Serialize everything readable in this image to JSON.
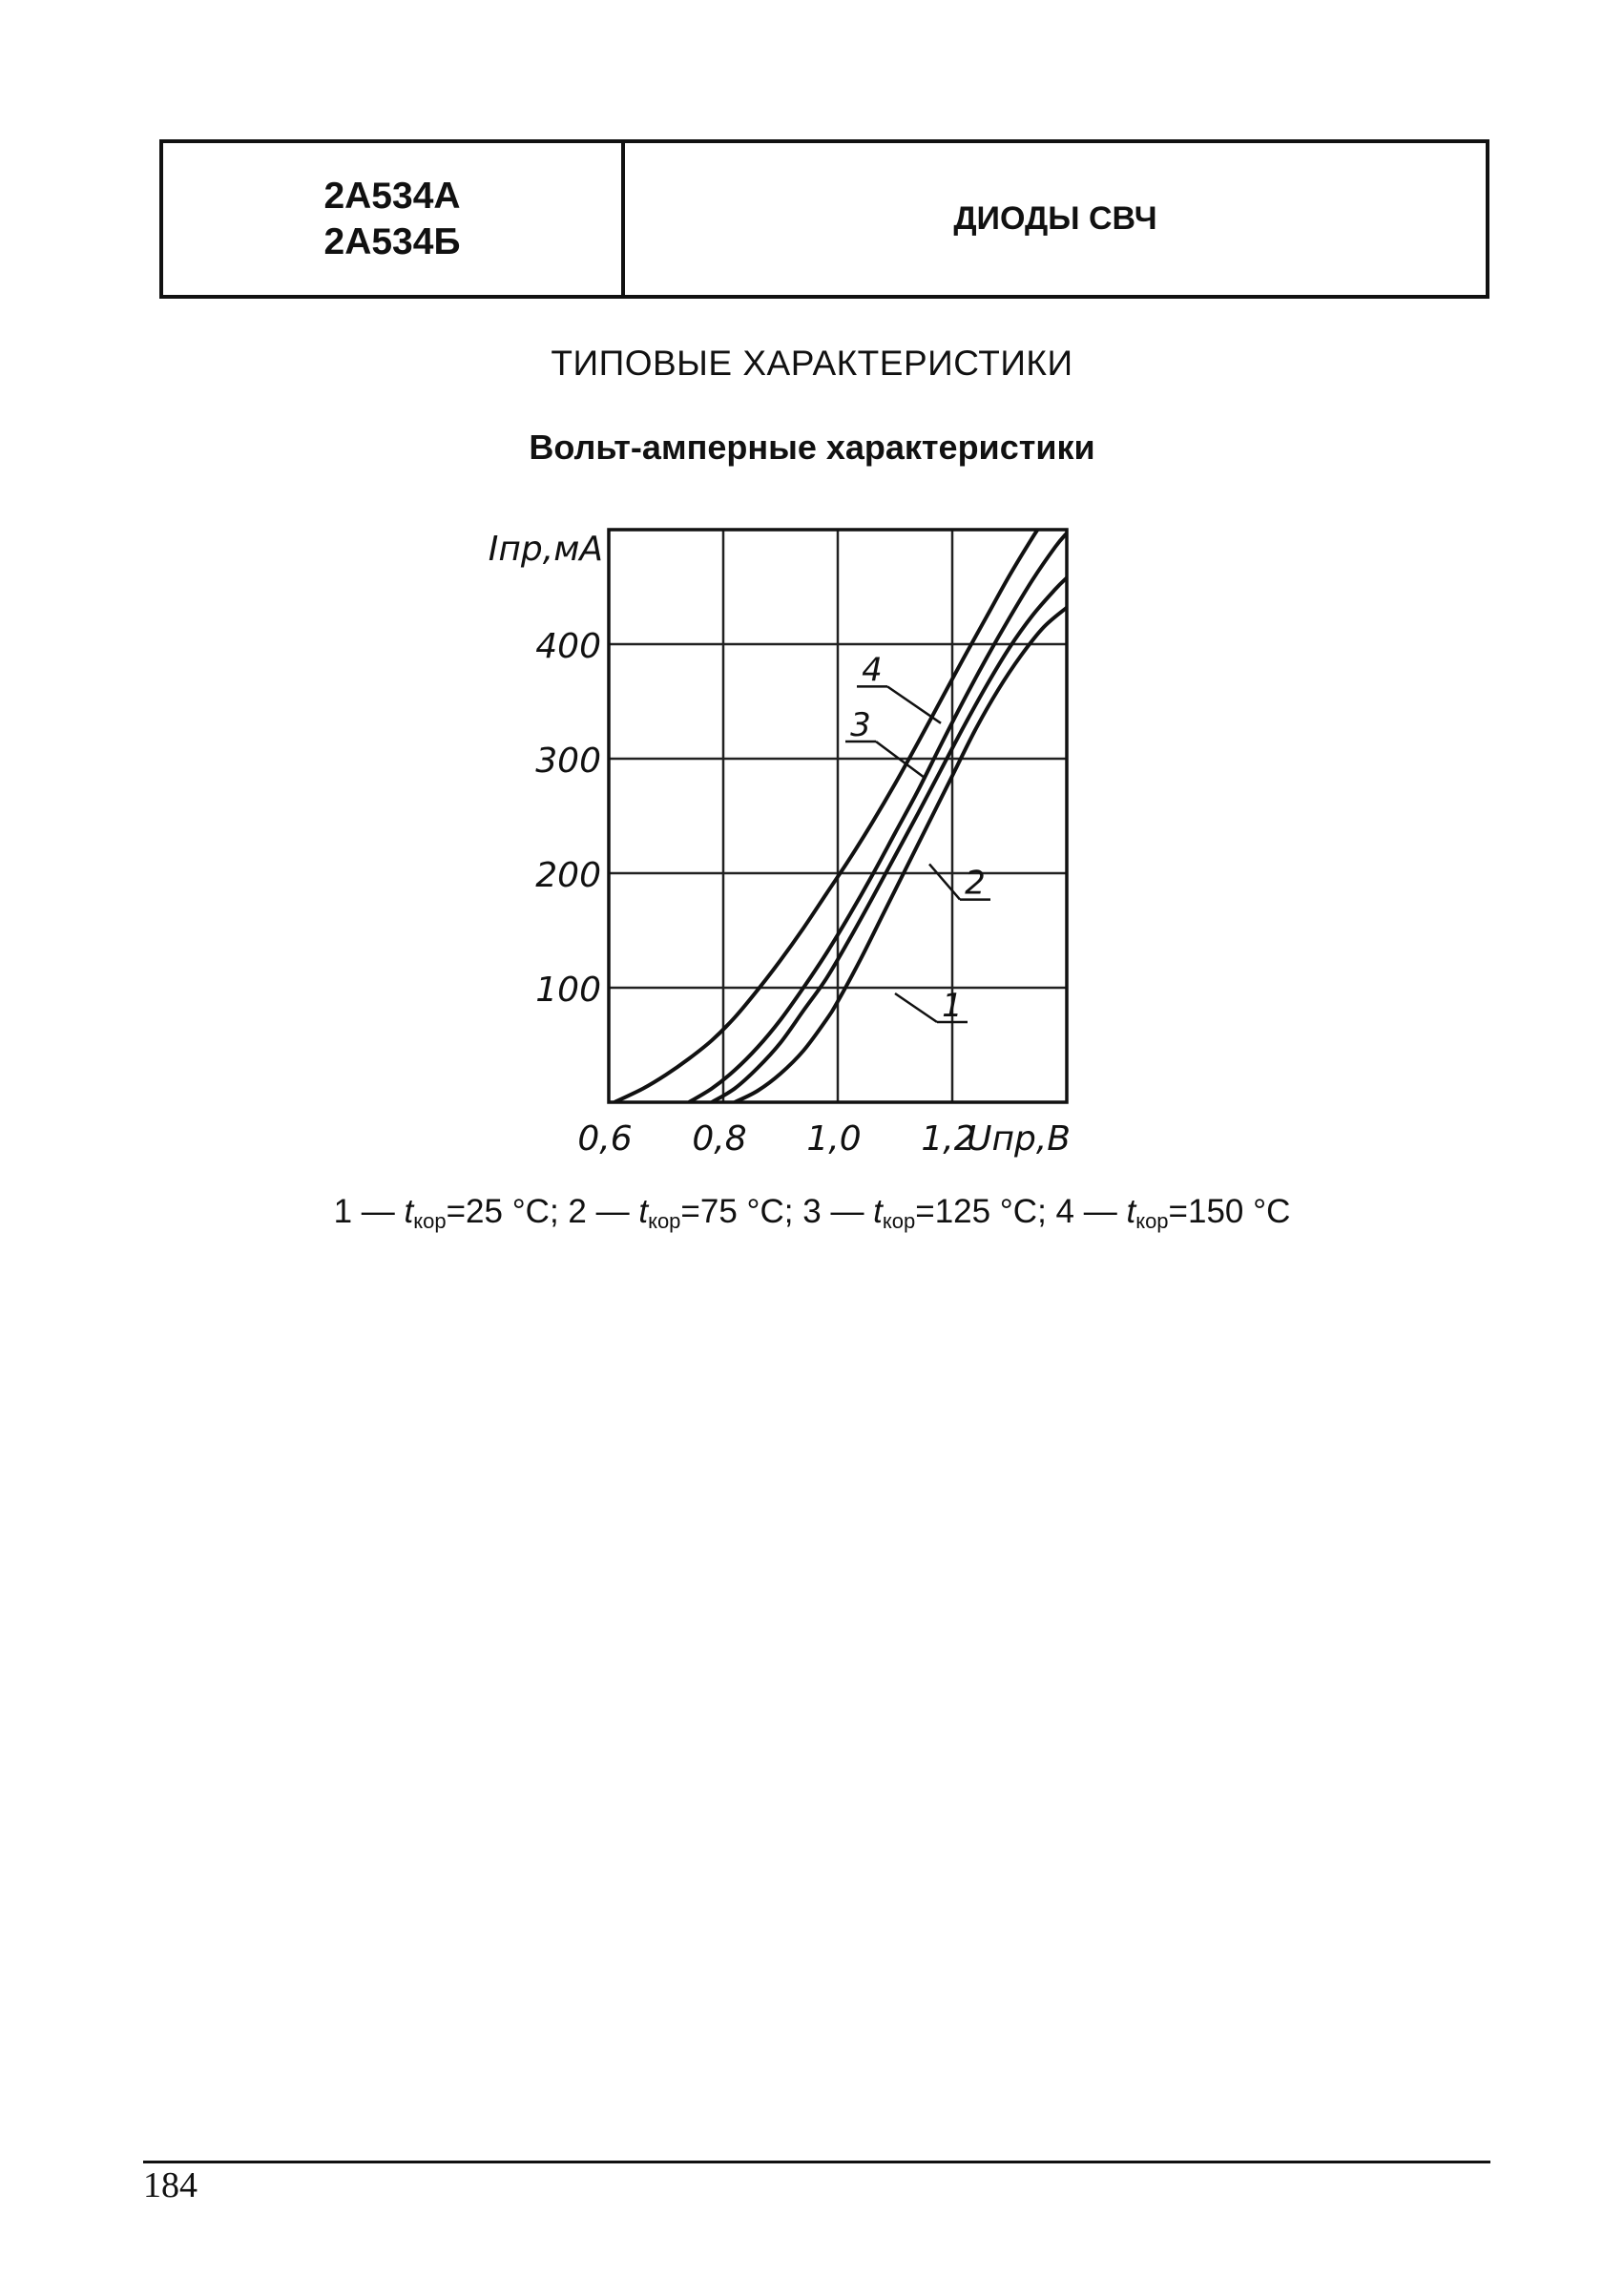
{
  "header": {
    "part_numbers": [
      "2А534А",
      "2А534Б"
    ],
    "category": "ДИОДЫ СВЧ"
  },
  "section_title": "ТИПОВЫЕ ХАРАКТЕРИСТИКИ",
  "page_number": "184",
  "legend": [
    {
      "id": "1",
      "temp": "25"
    },
    {
      "id": "2",
      "temp": "75"
    },
    {
      "id": "3",
      "temp": "125"
    },
    {
      "id": "4",
      "temp": "150"
    }
  ],
  "legend_text": {
    "dash": "—",
    "t_symbol": "t",
    "t_sub": "кор",
    "unit": "°C",
    "separator": ";"
  },
  "chart_data": {
    "type": "line",
    "title": "Вольт-амперные характеристики",
    "xlabel": "Uпр,В",
    "ylabel": "Iпр,мА",
    "xlim": [
      0.6,
      1.4
    ],
    "ylim": [
      0,
      500
    ],
    "x_ticks": [
      0.6,
      0.8,
      1.0,
      1.2
    ],
    "x_tick_labels": [
      "0,6",
      "0,8",
      "1,0",
      "1,2"
    ],
    "y_ticks": [
      100,
      200,
      300,
      400
    ],
    "y_tick_labels": [
      "100",
      "200",
      "300",
      "400"
    ],
    "grid": true,
    "series": [
      {
        "name": "1",
        "points": [
          [
            0.82,
            0
          ],
          [
            0.86,
            10
          ],
          [
            0.9,
            25
          ],
          [
            0.94,
            45
          ],
          [
            0.98,
            72
          ],
          [
            1.0,
            88
          ],
          [
            1.04,
            125
          ],
          [
            1.08,
            165
          ],
          [
            1.12,
            205
          ],
          [
            1.16,
            245
          ],
          [
            1.2,
            285
          ],
          [
            1.24,
            325
          ],
          [
            1.28,
            360
          ],
          [
            1.32,
            390
          ],
          [
            1.36,
            415
          ],
          [
            1.4,
            432
          ]
        ]
      },
      {
        "name": "2",
        "points": [
          [
            0.78,
            0
          ],
          [
            0.82,
            12
          ],
          [
            0.86,
            30
          ],
          [
            0.9,
            52
          ],
          [
            0.94,
            80
          ],
          [
            0.98,
            108
          ],
          [
            1.02,
            142
          ],
          [
            1.06,
            178
          ],
          [
            1.1,
            215
          ],
          [
            1.14,
            252
          ],
          [
            1.18,
            290
          ],
          [
            1.22,
            328
          ],
          [
            1.26,
            364
          ],
          [
            1.3,
            397
          ],
          [
            1.34,
            425
          ],
          [
            1.38,
            448
          ],
          [
            1.4,
            458
          ]
        ]
      },
      {
        "name": "3",
        "points": [
          [
            0.74,
            0
          ],
          [
            0.78,
            12
          ],
          [
            0.82,
            28
          ],
          [
            0.86,
            48
          ],
          [
            0.9,
            72
          ],
          [
            0.94,
            100
          ],
          [
            0.98,
            130
          ],
          [
            1.02,
            163
          ],
          [
            1.06,
            198
          ],
          [
            1.1,
            235
          ],
          [
            1.14,
            272
          ],
          [
            1.18,
            312
          ],
          [
            1.22,
            351
          ],
          [
            1.26,
            388
          ],
          [
            1.3,
            423
          ],
          [
            1.34,
            456
          ],
          [
            1.38,
            485
          ],
          [
            1.4,
            497
          ]
        ]
      },
      {
        "name": "4",
        "points": [
          [
            0.61,
            0
          ],
          [
            0.66,
            12
          ],
          [
            0.7,
            24
          ],
          [
            0.74,
            38
          ],
          [
            0.78,
            54
          ],
          [
            0.82,
            74
          ],
          [
            0.86,
            98
          ],
          [
            0.9,
            124
          ],
          [
            0.94,
            152
          ],
          [
            0.98,
            182
          ],
          [
            1.02,
            212
          ],
          [
            1.06,
            244
          ],
          [
            1.1,
            278
          ],
          [
            1.14,
            314
          ],
          [
            1.18,
            351
          ],
          [
            1.22,
            388
          ],
          [
            1.26,
            424
          ],
          [
            1.3,
            460
          ],
          [
            1.34,
            493
          ],
          [
            1.36,
            508
          ]
        ]
      }
    ],
    "curve_labels": [
      {
        "name": "4",
        "x": 1.06,
        "y": 368,
        "lead_to": [
          1.18,
          331
        ]
      },
      {
        "name": "3",
        "x": 1.04,
        "y": 320,
        "lead_to": [
          1.15,
          284
        ]
      },
      {
        "name": "2",
        "x": 1.24,
        "y": 182,
        "lead_to": [
          1.16,
          208
        ]
      },
      {
        "name": "1",
        "x": 1.2,
        "y": 75,
        "lead_to": [
          1.1,
          95
        ]
      }
    ]
  }
}
